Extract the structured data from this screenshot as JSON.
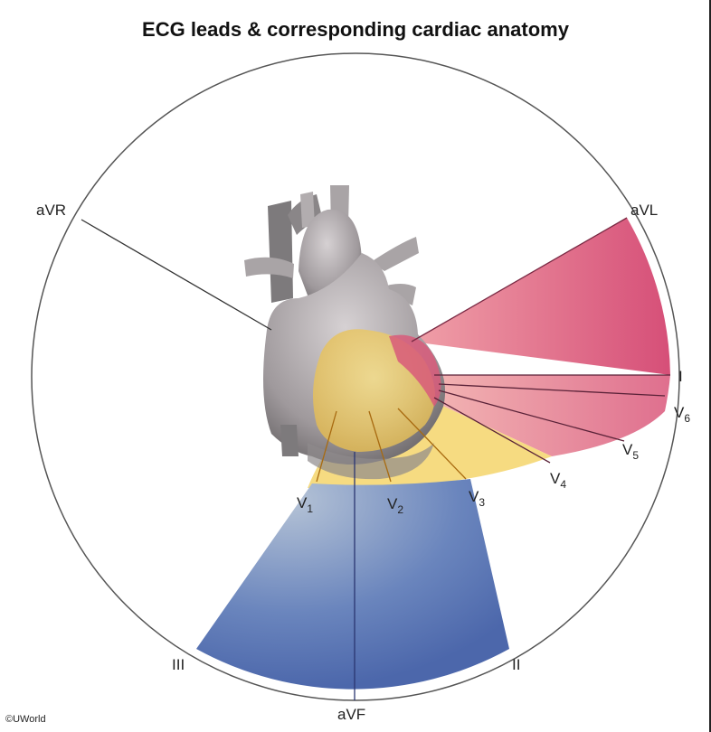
{
  "title": "ECG leads & corresponding cardiac anatomy",
  "copyright": "©UWorld",
  "leads": {
    "aVR": "aVR",
    "aVL": "aVL",
    "I": "I",
    "V6_base": "V",
    "V6_sub": "6",
    "V5_base": "V",
    "V5_sub": "5",
    "V4_base": "V",
    "V4_sub": "4",
    "V3_base": "V",
    "V3_sub": "3",
    "V2_base": "V",
    "V2_sub": "2",
    "V1_base": "V",
    "V1_sub": "1",
    "II": "II",
    "III": "III",
    "aVF": "aVF"
  },
  "colors": {
    "lateral": "#d9567a",
    "septal_anterior": "#f2cf66",
    "inferior": "#5470b0",
    "circle": "#555555",
    "heart": "#9c979a"
  }
}
